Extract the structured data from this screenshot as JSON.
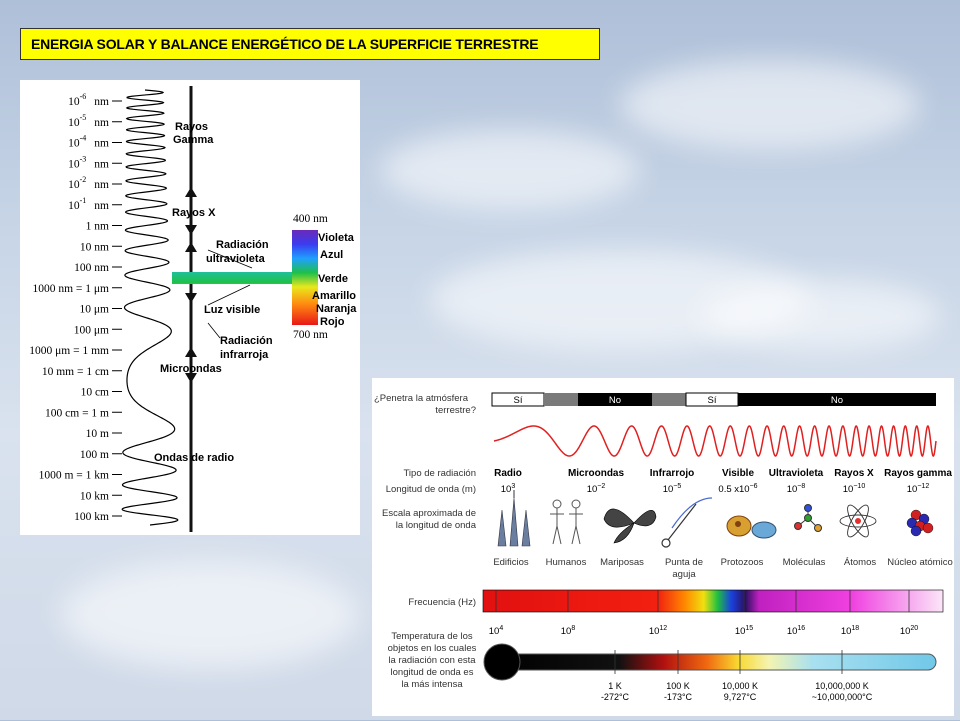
{
  "title": "ENERGIA SOLAR Y BALANCE ENERGÉTICO DE LA SUPERFICIE TERRESTRE",
  "left_scale": [
    {
      "pre": "10",
      "sup": "-6",
      "post": "nm"
    },
    {
      "pre": "10",
      "sup": "-5",
      "post": "nm"
    },
    {
      "pre": "10",
      "sup": "-4",
      "post": "nm"
    },
    {
      "pre": "10",
      "sup": "-3",
      "post": "nm"
    },
    {
      "pre": "10",
      "sup": "-2",
      "post": "nm"
    },
    {
      "pre": "10",
      "sup": "-1",
      "post": "nm"
    },
    {
      "pre": "1 nm",
      "sup": "",
      "post": ""
    },
    {
      "pre": "10 nm",
      "sup": "",
      "post": ""
    },
    {
      "pre": "100 nm",
      "sup": "",
      "post": ""
    },
    {
      "pre": "1000 nm = 1 μm",
      "sup": "",
      "post": ""
    },
    {
      "pre": "10 μm",
      "sup": "",
      "post": ""
    },
    {
      "pre": "100 μm",
      "sup": "",
      "post": ""
    },
    {
      "pre": "1000 μm = 1 mm",
      "sup": "",
      "post": ""
    },
    {
      "pre": "10 mm = 1 cm",
      "sup": "",
      "post": ""
    },
    {
      "pre": "10 cm",
      "sup": "",
      "post": ""
    },
    {
      "pre": "100 cm = 1 m",
      "sup": "",
      "post": ""
    },
    {
      "pre": "10 m",
      "sup": "",
      "post": ""
    },
    {
      "pre": "100 m",
      "sup": "",
      "post": ""
    },
    {
      "pre": "1000 m = 1 km",
      "sup": "",
      "post": ""
    },
    {
      "pre": "10 km",
      "sup": "",
      "post": ""
    },
    {
      "pre": "100 km",
      "sup": "",
      "post": ""
    }
  ],
  "left_regions": {
    "gamma": [
      "Rayos",
      "Gamma"
    ],
    "xray": "Rayos X",
    "uv": [
      "Radiación",
      "ultravioleta"
    ],
    "visible": "Luz visible",
    "ir": [
      "Radiación",
      "infrarroja"
    ],
    "micro": "Microondas",
    "radio": "Ondas de radio"
  },
  "visible_band": {
    "top": "400 nm",
    "bottom": "700 nm",
    "colors": [
      "Violeta",
      "Azul",
      "Verde",
      "Amarillo",
      "Naranja",
      "Rojo"
    ]
  },
  "right": {
    "penetra_label": [
      "¿Penetra la atmósfera",
      "terrestre?"
    ],
    "penetra_values": [
      "Sí",
      "No",
      "Sí",
      "No"
    ],
    "tipo_label": "Tipo de radiación",
    "longitud_label": "Longitud de onda (m)",
    "escala_label": [
      "Escala aproximada de",
      "la longitud de onda"
    ],
    "types": [
      {
        "name": "Radio",
        "lambda": "10",
        "sup": "3"
      },
      {
        "name": "Microondas",
        "lambda": "10",
        "sup": "−2"
      },
      {
        "name": "Infrarrojo",
        "lambda": "10",
        "sup": "−5"
      },
      {
        "name": "Visible",
        "lambda": "0.5 x10",
        "sup": "−6"
      },
      {
        "name": "Ultravioleta",
        "lambda": "10",
        "sup": "−8"
      },
      {
        "name": "Rayos X",
        "lambda": "10",
        "sup": "−10"
      },
      {
        "name": "Rayos gamma",
        "lambda": "10",
        "sup": "−12"
      }
    ],
    "objects": [
      "Edificios",
      "Humanos",
      "Mariposas",
      "Punta de aguja",
      "Protozoos",
      "Moléculas",
      "Átomos",
      "Núcleo atómico"
    ],
    "frecuencia_label": "Frecuencia (Hz)",
    "freq_ticks": [
      {
        "b": "10",
        "s": "4"
      },
      {
        "b": "10",
        "s": "8"
      },
      {
        "b": "10",
        "s": "12"
      },
      {
        "b": "10",
        "s": "15"
      },
      {
        "b": "10",
        "s": "16"
      },
      {
        "b": "10",
        "s": "18"
      },
      {
        "b": "10",
        "s": "20"
      }
    ],
    "temp_label": [
      "Temperatura de los",
      "objetos en los cuales",
      "la radiación con esta",
      "longitud de onda es",
      "la más intensa"
    ],
    "temps": [
      {
        "k": "1 K",
        "c": "-272°C"
      },
      {
        "k": "100 K",
        "c": "-173°C"
      },
      {
        "k": "10,000 K",
        "c": "9,727°C"
      },
      {
        "k": "10,000,000 K",
        "c": "~10,000,000°C"
      }
    ]
  },
  "colors": {
    "title_bg": "#ffff00",
    "wave": "#e02020"
  }
}
